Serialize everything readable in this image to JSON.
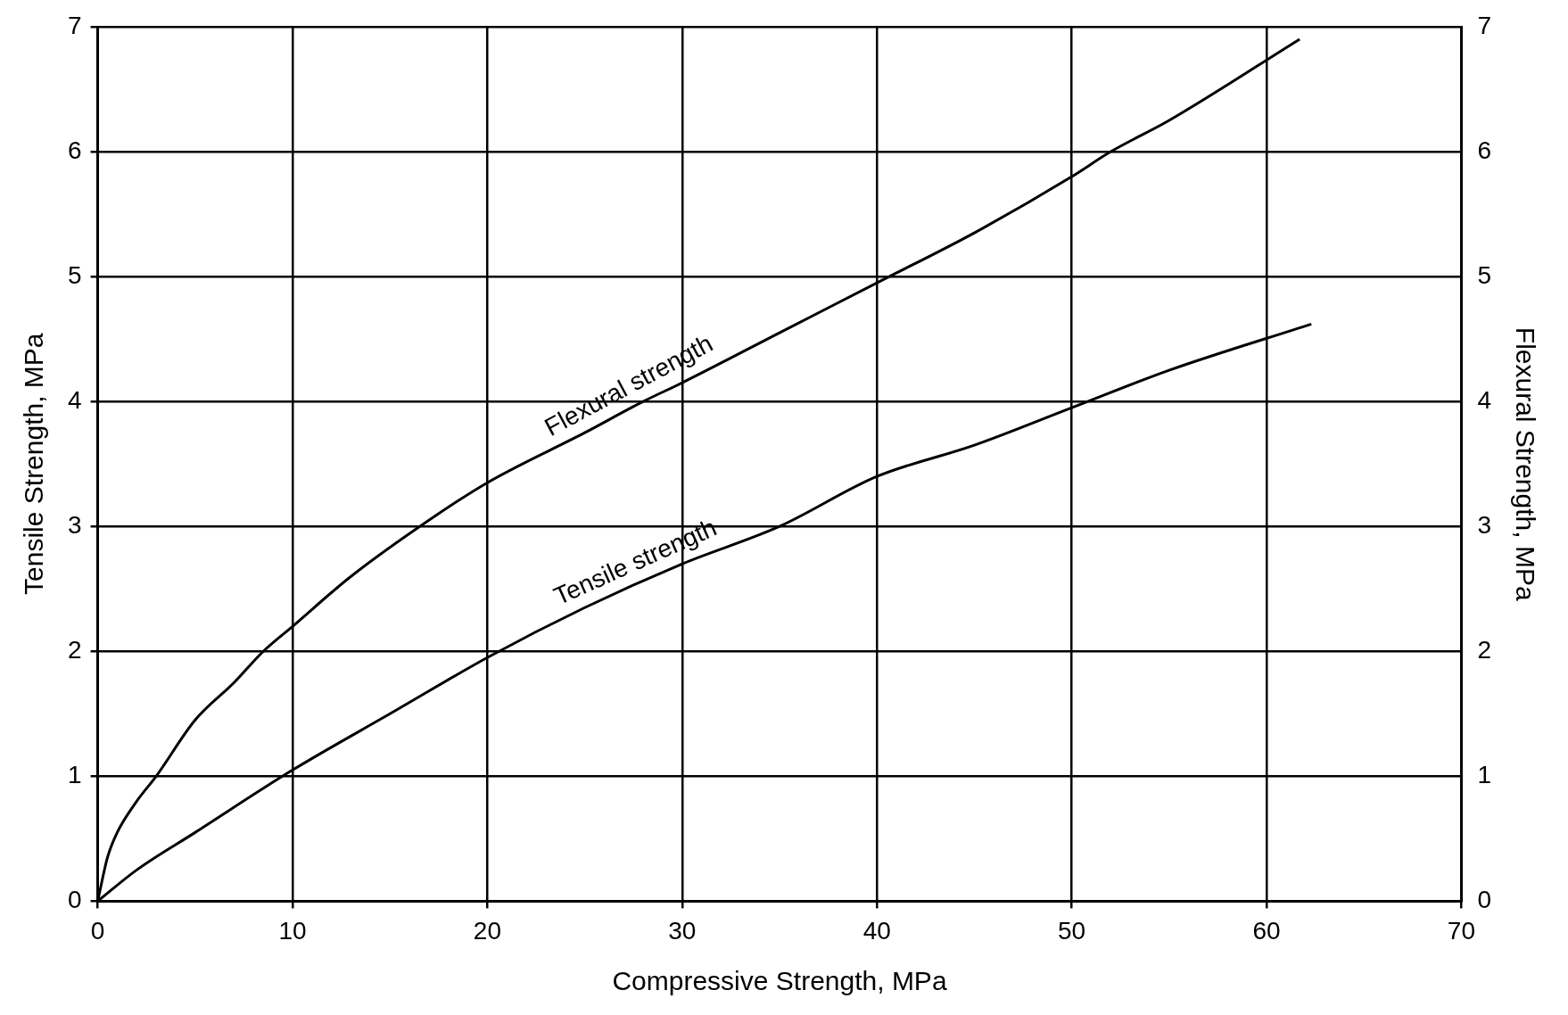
{
  "chart_data": {
    "type": "line",
    "xlabel": "Compressive Strength, MPa",
    "ylabel": "Tensile Strength, MPa",
    "y2label": "Flexural Strength, MPa",
    "xlim": [
      0,
      70
    ],
    "xticks": [
      0,
      10,
      20,
      30,
      40,
      50,
      60,
      70
    ],
    "ylim": [
      0,
      7
    ],
    "yticks": [
      0,
      1,
      2,
      3,
      4,
      5,
      6,
      7
    ],
    "y2lim": [
      0,
      7
    ],
    "y2ticks": [
      0,
      1,
      2,
      3,
      4,
      5,
      6,
      7
    ],
    "grid": true,
    "legend": false,
    "marker": "none",
    "line_style": "solid",
    "series": [
      {
        "name": "Flexural strength",
        "color": "#000000",
        "axis": "y2",
        "x": [
          0,
          0.5,
          1,
          2,
          3,
          5,
          7,
          8.5,
          10,
          13,
          17,
          20,
          25,
          28,
          30,
          35,
          40,
          45,
          50,
          52,
          55,
          61.7
        ],
        "values": [
          0,
          0.35,
          0.55,
          0.8,
          1.0,
          1.45,
          1.75,
          2.0,
          2.2,
          2.6,
          3.05,
          3.35,
          3.75,
          4.0,
          4.15,
          4.55,
          4.95,
          5.35,
          5.8,
          6.0,
          6.25,
          6.9
        ]
      },
      {
        "name": "Tensile strength",
        "color": "#000000",
        "x": [
          0,
          2,
          5,
          10,
          15,
          20,
          25,
          30,
          35,
          40,
          45,
          50,
          55,
          62.3
        ],
        "values": [
          0,
          0.25,
          0.55,
          1.05,
          1.5,
          1.95,
          2.35,
          2.7,
          3.0,
          3.4,
          3.65,
          3.95,
          4.25,
          4.62
        ]
      }
    ]
  }
}
